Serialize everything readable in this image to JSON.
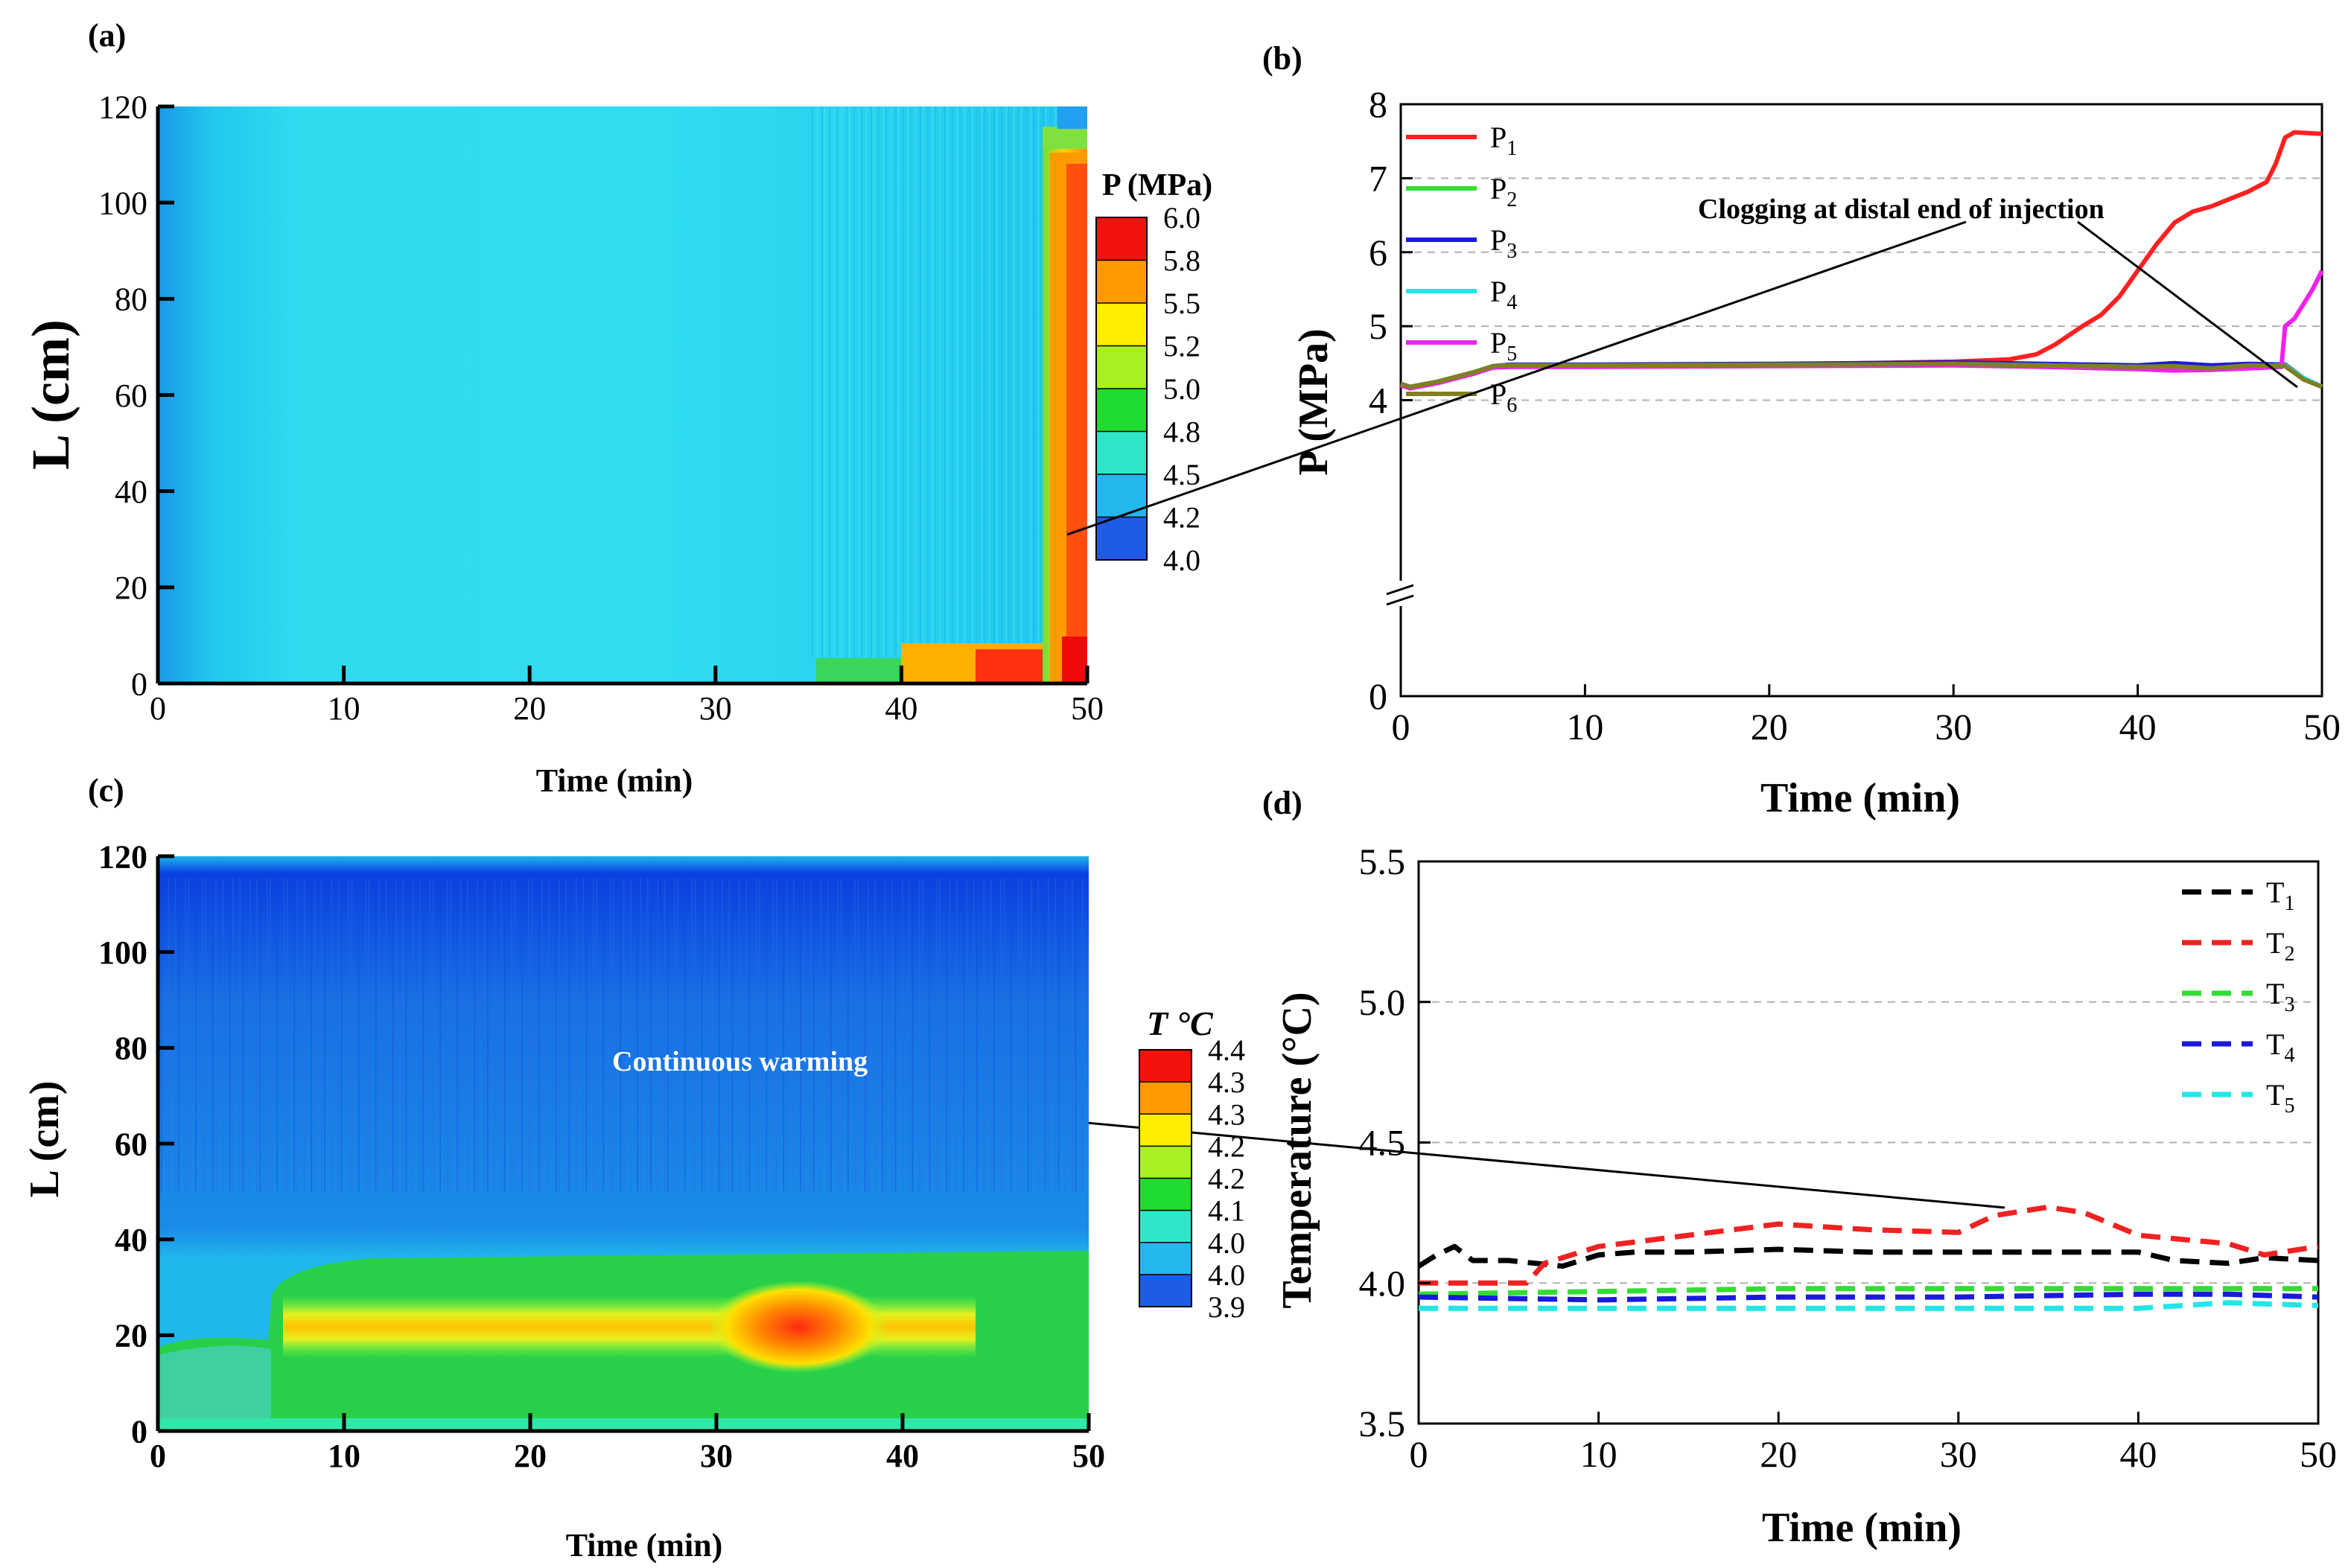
{
  "chart_data": [
    {
      "panel": "(a)",
      "type": "heatmap",
      "xlabel": "Time (min)",
      "ylabel": "L (cm)",
      "xlim": [
        0,
        50
      ],
      "ylim": [
        0,
        120
      ],
      "xticks": [
        0,
        10,
        20,
        30,
        40,
        50
      ],
      "yticks": [
        0,
        20,
        40,
        60,
        80,
        100,
        120
      ],
      "colorbar": {
        "title": "P (MPa)",
        "range": [
          4.0,
          6.0
        ],
        "tick_labels": [
          "6.0",
          "5.8",
          "5.5",
          "5.2",
          "5.0",
          "4.8",
          "4.5",
          "4.2",
          "4.0"
        ]
      },
      "regions": [
        {
          "x": [
            0,
            50
          ],
          "L": [
            0,
            120
          ],
          "value": 4.45
        },
        {
          "x": [
            40,
            48
          ],
          "L": [
            0,
            8
          ],
          "value": 5.3
        },
        {
          "x": [
            48,
            50
          ],
          "L": [
            0,
            115
          ],
          "value": 5.8
        },
        {
          "x": [
            48.5,
            50
          ],
          "L": [
            0,
            10
          ],
          "value": 6.0
        }
      ]
    },
    {
      "panel": "(b)",
      "type": "line",
      "xlabel": "Time (min)",
      "ylabel": "P (MPa)",
      "xlim": [
        0,
        50
      ],
      "ylim": [
        0,
        8
      ],
      "xticks": [
        0,
        10,
        20,
        30,
        40,
        50
      ],
      "yticks": [
        0,
        4,
        5,
        6,
        7,
        8
      ],
      "axis_break": true,
      "grid": "dashed horizontal",
      "legend": "top-left",
      "annotation": "Clogging at distal end of injection",
      "series": [
        {
          "name": "P1",
          "sub": "1",
          "color": "#ff2020",
          "x": [
            0,
            0.5,
            2,
            4,
            5,
            6,
            10,
            20,
            30,
            33,
            34.5,
            35.5,
            37,
            38,
            39,
            40,
            41,
            42,
            43,
            44,
            45,
            46,
            47,
            47.5,
            48,
            48.5,
            50
          ],
          "y": [
            4.22,
            4.18,
            4.25,
            4.38,
            4.46,
            4.47,
            4.47,
            4.48,
            4.52,
            4.55,
            4.62,
            4.75,
            5.0,
            5.15,
            5.4,
            5.75,
            6.1,
            6.4,
            6.55,
            6.62,
            6.72,
            6.82,
            6.95,
            7.2,
            7.55,
            7.62,
            7.6
          ]
        },
        {
          "name": "P2",
          "sub": "2",
          "color": "#33dd33",
          "x": [
            0,
            0.5,
            2,
            4,
            5,
            6,
            10,
            20,
            30,
            35,
            40,
            42,
            44,
            46,
            48,
            49,
            50
          ],
          "y": [
            4.22,
            4.18,
            4.25,
            4.38,
            4.46,
            4.47,
            4.47,
            4.48,
            4.5,
            4.48,
            4.46,
            4.47,
            4.44,
            4.47,
            4.48,
            4.3,
            4.18
          ]
        },
        {
          "name": "P3",
          "sub": "3",
          "color": "#1a1adc",
          "x": [
            0,
            0.5,
            2,
            4,
            5,
            6,
            10,
            20,
            30,
            35,
            40,
            42,
            44,
            46,
            48,
            49,
            50
          ],
          "y": [
            4.22,
            4.18,
            4.25,
            4.38,
            4.46,
            4.48,
            4.48,
            4.49,
            4.51,
            4.49,
            4.47,
            4.5,
            4.47,
            4.49,
            4.48,
            4.3,
            4.18
          ]
        },
        {
          "name": "P4",
          "sub": "4",
          "color": "#22e6e6",
          "x": [
            0,
            0.5,
            2,
            4,
            5,
            6,
            10,
            20,
            30,
            35,
            40,
            42,
            44,
            46,
            48,
            49,
            50
          ],
          "y": [
            4.22,
            4.18,
            4.25,
            4.38,
            4.46,
            4.47,
            4.47,
            4.47,
            4.49,
            4.47,
            4.45,
            4.44,
            4.43,
            4.46,
            4.47,
            4.3,
            4.18
          ]
        },
        {
          "name": "P5",
          "sub": "5",
          "color": "#ee22ee",
          "x": [
            0,
            0.5,
            2,
            4,
            5,
            6,
            10,
            20,
            30,
            35,
            40,
            42,
            44,
            46,
            47.8,
            48,
            48.5,
            49,
            49.5,
            50
          ],
          "y": [
            4.2,
            4.16,
            4.23,
            4.36,
            4.44,
            4.45,
            4.45,
            4.46,
            4.47,
            4.45,
            4.42,
            4.4,
            4.41,
            4.43,
            4.45,
            5.0,
            5.1,
            5.3,
            5.5,
            5.75
          ]
        },
        {
          "name": "P6",
          "sub": "6",
          "color": "#808020",
          "x": [
            0,
            0.5,
            2,
            4,
            5,
            6,
            10,
            20,
            30,
            35,
            40,
            42,
            44,
            46,
            48,
            49,
            50
          ],
          "y": [
            4.22,
            4.18,
            4.25,
            4.38,
            4.46,
            4.47,
            4.47,
            4.48,
            4.49,
            4.47,
            4.45,
            4.46,
            4.43,
            4.47,
            4.46,
            4.28,
            4.18
          ]
        }
      ]
    },
    {
      "panel": "(c)",
      "type": "heatmap",
      "xlabel": "Time (min)",
      "ylabel": "L (cm)",
      "xlim": [
        0,
        50
      ],
      "ylim": [
        0,
        120
      ],
      "xticks": [
        0,
        10,
        20,
        30,
        40,
        50
      ],
      "yticks": [
        0,
        20,
        40,
        60,
        80,
        100,
        120
      ],
      "colorbar": {
        "title": "T °C",
        "range": [
          3.9,
          4.4
        ],
        "tick_labels": [
          "4.4",
          "4.3",
          "4.3",
          "4.2",
          "4.2",
          "4.1",
          "4.0",
          "4.0",
          "3.9"
        ]
      },
      "annotation": "Continuous warming",
      "regions": [
        {
          "x": [
            0,
            50
          ],
          "L": [
            0,
            120
          ],
          "value": 3.98
        },
        {
          "x": [
            7,
            50
          ],
          "L": [
            2,
            37
          ],
          "value": 4.18
        },
        {
          "x": [
            10,
            42
          ],
          "L": [
            14,
            26
          ],
          "value": 4.25
        },
        {
          "x": [
            31,
            39
          ],
          "L": [
            12,
            28
          ],
          "value": 4.38
        }
      ]
    },
    {
      "panel": "(d)",
      "type": "line",
      "xlabel": "Time (min)",
      "ylabel": "Temperature (°C)",
      "xlim": [
        0,
        50
      ],
      "ylim": [
        3.5,
        5.5
      ],
      "xticks": [
        0,
        10,
        20,
        30,
        40,
        50
      ],
      "yticks": [
        3.5,
        4.0,
        4.5,
        5.0,
        5.5
      ],
      "grid": "dashed horizontal",
      "legend": "top-right",
      "series": [
        {
          "name": "T1",
          "sub": "1",
          "color": "#000000",
          "x": [
            0,
            1,
            2,
            3,
            5,
            8,
            10,
            12,
            15,
            20,
            25,
            30,
            35,
            40,
            42,
            45,
            47,
            50
          ],
          "y": [
            4.06,
            4.1,
            4.13,
            4.08,
            4.08,
            4.06,
            4.1,
            4.11,
            4.11,
            4.12,
            4.11,
            4.11,
            4.11,
            4.11,
            4.08,
            4.07,
            4.09,
            4.08
          ]
        },
        {
          "name": "T2",
          "sub": "2",
          "color": "#ee2222",
          "x": [
            0,
            6,
            7,
            10,
            15,
            20,
            25,
            30,
            32,
            35,
            37,
            40,
            45,
            47,
            50
          ],
          "y": [
            4.0,
            4.0,
            4.07,
            4.13,
            4.17,
            4.21,
            4.19,
            4.18,
            4.24,
            4.27,
            4.25,
            4.17,
            4.14,
            4.1,
            4.13
          ]
        },
        {
          "name": "T3",
          "sub": "3",
          "color": "#33dd33",
          "x": [
            0,
            10,
            20,
            30,
            40,
            45,
            50
          ],
          "y": [
            3.96,
            3.97,
            3.98,
            3.98,
            3.98,
            3.98,
            3.98
          ]
        },
        {
          "name": "T4",
          "sub": "4",
          "color": "#1a1adc",
          "x": [
            0,
            10,
            20,
            30,
            40,
            45,
            50
          ],
          "y": [
            3.95,
            3.94,
            3.95,
            3.95,
            3.96,
            3.96,
            3.95
          ]
        },
        {
          "name": "T5",
          "sub": "5",
          "color": "#22e6e6",
          "x": [
            0,
            10,
            20,
            30,
            40,
            45,
            50
          ],
          "y": [
            3.91,
            3.91,
            3.91,
            3.91,
            3.91,
            3.93,
            3.92
          ]
        }
      ]
    }
  ]
}
